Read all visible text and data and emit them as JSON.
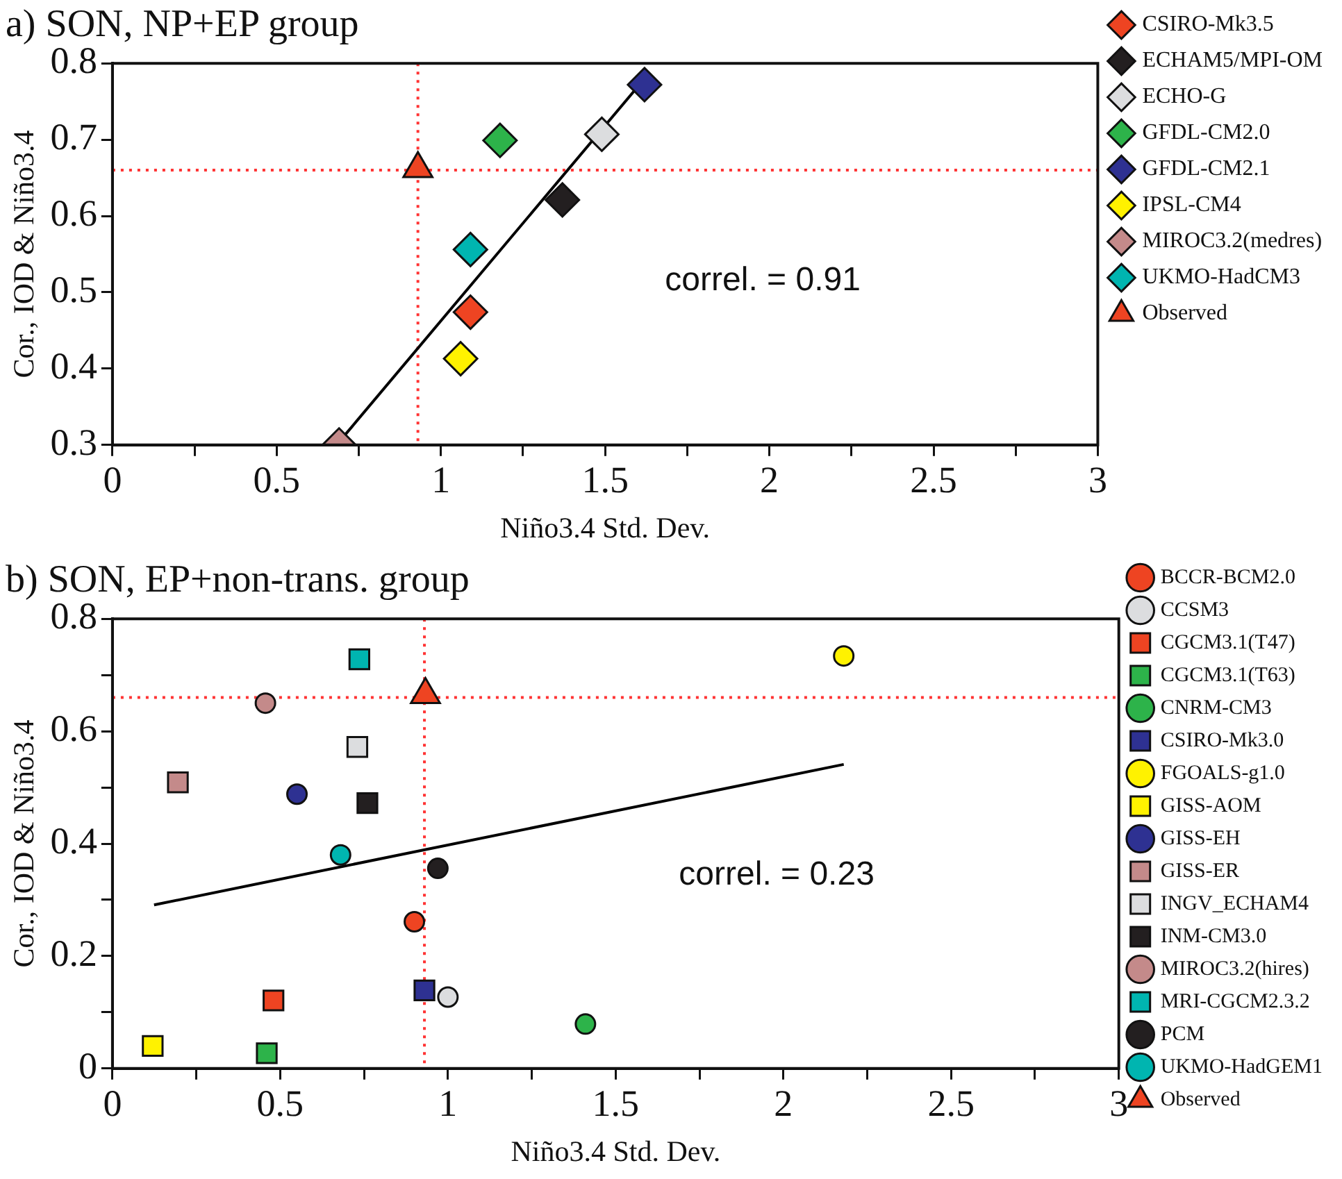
{
  "chart_data": [
    {
      "type": "scatter",
      "title": "a) SON, NP+EP group",
      "xlabel": "Niño3.4 Std. Dev.",
      "ylabel": "Cor., IOD & Niño3.4",
      "xlim": [
        0,
        3
      ],
      "ylim": [
        0.3,
        0.8
      ],
      "xticks": [
        0,
        {
          "value": 0.25,
          "label": null
        },
        0.5,
        {
          "value": 0.75,
          "label": null
        },
        1,
        {
          "value": 1.25,
          "label": null
        },
        1.5,
        {
          "value": 1.75,
          "label": null
        },
        2,
        {
          "value": 2.25,
          "label": null
        },
        2.5,
        {
          "value": 2.75,
          "label": null
        },
        3
      ],
      "yticks": [
        0.3,
        0.4,
        0.5,
        0.6,
        0.7,
        0.8
      ],
      "grid": false,
      "legend": "right",
      "series": [
        {
          "name": "CSIRO-Mk3.5",
          "color": "#ee4422",
          "marker": "diamond",
          "x": [
            1.09
          ],
          "values": [
            0.474
          ]
        },
        {
          "name": "ECHAM5/MPI-OM",
          "color": "#231f20",
          "marker": "diamond",
          "x": [
            1.37
          ],
          "values": [
            0.621
          ]
        },
        {
          "name": "ECHO-G",
          "color": "#dcdddf",
          "marker": "diamond",
          "x": [
            1.49
          ],
          "values": [
            0.707
          ]
        },
        {
          "name": "GFDL-CM2.0",
          "color": "#2db34a",
          "marker": "diamond",
          "x": [
            1.18
          ],
          "values": [
            0.699
          ]
        },
        {
          "name": "GFDL-CM2.1",
          "color": "#2e3192",
          "marker": "diamond",
          "x": [
            1.62
          ],
          "values": [
            0.772
          ]
        },
        {
          "name": "IPSL-CM4",
          "color": "#fff200",
          "marker": "diamond",
          "x": [
            1.06
          ],
          "values": [
            0.413
          ]
        },
        {
          "name": "MIROC3.2(medres)",
          "color": "#c48a8a",
          "marker": "diamond",
          "x": [
            0.69
          ],
          "values": [
            0.3
          ]
        },
        {
          "name": "UKMO-HadCM3",
          "color": "#00b5b0",
          "marker": "diamond",
          "x": [
            1.09
          ],
          "values": [
            0.556
          ]
        },
        {
          "name": "Observed",
          "color": "#ee4422",
          "marker": "triangle",
          "x": [
            0.93
          ],
          "values": [
            0.662
          ]
        },
        {
          "type": "line",
          "color": "#000000",
          "marker": "none",
          "x": [
            0.7,
            1.62
          ],
          "values": [
            0.309,
            0.78
          ]
        }
      ],
      "ref_lines": [
        {
          "axis": "x",
          "value": 0.93,
          "color": "#ff3333",
          "line_style": "dotted"
        },
        {
          "axis": "y",
          "value": 0.66,
          "color": "#ff3333",
          "line_style": "dotted"
        }
      ],
      "annotations": [
        "correl. = 0.91"
      ]
    },
    {
      "type": "scatter",
      "title": "b) SON, EP+non-trans. group",
      "xlabel": "Niño3.4 Std. Dev.",
      "ylabel": "Cor., IOD & Niño3.4",
      "xlim": [
        0,
        3
      ],
      "ylim": [
        0,
        0.8
      ],
      "xticks": [
        0,
        {
          "value": 0.25,
          "label": null
        },
        0.5,
        {
          "value": 0.75,
          "label": null
        },
        1,
        {
          "value": 1.25,
          "label": null
        },
        1.5,
        {
          "value": 1.75,
          "label": null
        },
        2,
        {
          "value": 2.25,
          "label": null
        },
        2.5,
        {
          "value": 2.75,
          "label": null
        },
        3
      ],
      "yticks": [
        0,
        {
          "value": 0.1,
          "label": null
        },
        0.2,
        {
          "value": 0.3,
          "label": null
        },
        0.4,
        {
          "value": 0.5,
          "label": null
        },
        0.6,
        {
          "value": 0.7,
          "label": null
        },
        0.8
      ],
      "grid": false,
      "legend": "right",
      "series": [
        {
          "name": "BCCR-BCM2.0",
          "color": "#ee4422",
          "marker": "circle",
          "x": [
            0.9
          ],
          "values": [
            0.261
          ]
        },
        {
          "name": "CCSM3",
          "color": "#dcdddf",
          "marker": "circle",
          "x": [
            1.0
          ],
          "values": [
            0.127
          ]
        },
        {
          "name": "CGCM3.1(T47)",
          "color": "#ee4422",
          "marker": "square",
          "x": [
            0.48
          ],
          "values": [
            0.121
          ]
        },
        {
          "name": "CGCM3.1(T63)",
          "color": "#2db34a",
          "marker": "square",
          "x": [
            0.46
          ],
          "values": [
            0.027
          ]
        },
        {
          "name": "CNRM-CM3",
          "color": "#2db34a",
          "marker": "circle",
          "x": [
            1.41
          ],
          "values": [
            0.079
          ]
        },
        {
          "name": "CSIRO-Mk3.0",
          "color": "#2e3192",
          "marker": "square",
          "x": [
            0.93
          ],
          "values": [
            0.139
          ]
        },
        {
          "name": "FGOALS-g1.0",
          "color": "#fff200",
          "marker": "circle",
          "x": [
            2.18
          ],
          "values": [
            0.734
          ]
        },
        {
          "name": "GISS-AOM",
          "color": "#fff200",
          "marker": "square",
          "x": [
            0.12
          ],
          "values": [
            0.04
          ]
        },
        {
          "name": "GISS-EH",
          "color": "#2e3192",
          "marker": "circle",
          "x": [
            0.55
          ],
          "values": [
            0.488
          ]
        },
        {
          "name": "GISS-ER",
          "color": "#c48a8a",
          "marker": "square",
          "x": [
            0.195
          ],
          "values": [
            0.509
          ]
        },
        {
          "name": "INGV_ECHAM4",
          "color": "#dcdddf",
          "marker": "square",
          "x": [
            0.73
          ],
          "values": [
            0.572
          ]
        },
        {
          "name": "INM-CM3.0",
          "color": "#231f20",
          "marker": "square",
          "x": [
            0.76
          ],
          "values": [
            0.472
          ]
        },
        {
          "name": "MIROC3.2(hires)",
          "color": "#c48a8a",
          "marker": "circle",
          "x": [
            0.456
          ],
          "values": [
            0.65
          ]
        },
        {
          "name": "MRI-CGCM2.3.2",
          "color": "#00b5b0",
          "marker": "square",
          "x": [
            0.736
          ],
          "values": [
            0.728
          ]
        },
        {
          "name": "PCM",
          "color": "#231f20",
          "marker": "circle",
          "x": [
            0.97
          ],
          "values": [
            0.356
          ]
        },
        {
          "name": "UKMO-HadGEM1",
          "color": "#00b5b0",
          "marker": "circle",
          "x": [
            0.68
          ],
          "values": [
            0.38
          ]
        },
        {
          "name": "Observed",
          "color": "#ee4422",
          "marker": "triangle",
          "x": [
            0.933
          ],
          "values": [
            0.665
          ]
        },
        {
          "type": "line",
          "color": "#000000",
          "marker": "none",
          "x": [
            0.124,
            2.18
          ],
          "values": [
            0.291,
            0.541
          ]
        }
      ],
      "ref_lines": [
        {
          "axis": "x",
          "value": 0.93,
          "color": "#ff3333",
          "line_style": "dotted"
        },
        {
          "axis": "y",
          "value": 0.66,
          "color": "#ff3333",
          "line_style": "dotted"
        }
      ],
      "annotations": [
        "correl. = 0.23"
      ]
    }
  ]
}
